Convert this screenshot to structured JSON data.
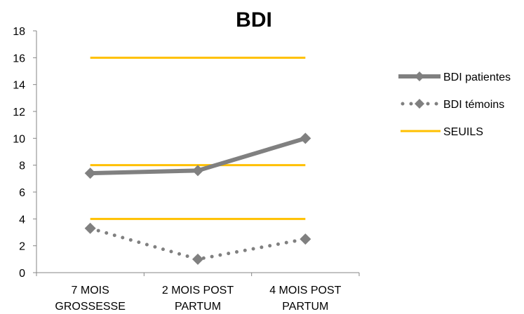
{
  "chart_data": {
    "type": "line",
    "title": "BDI",
    "categories": [
      [
        "7 MOIS",
        "GROSSESSE"
      ],
      [
        "2 MOIS POST",
        "PARTUM"
      ],
      [
        "4 MOIS POST",
        "PARTUM"
      ]
    ],
    "ylim": [
      0,
      18
    ],
    "yticks": [
      0,
      2,
      4,
      6,
      8,
      10,
      12,
      14,
      16,
      18
    ],
    "grid": false,
    "legend_position": "right",
    "series": [
      {
        "name": "BDI patientes",
        "values": [
          7.4,
          7.6,
          10.0
        ],
        "color": "#808080",
        "style": "solid",
        "marker": "diamond"
      },
      {
        "name": "BDI témoins",
        "values": [
          3.3,
          1.0,
          2.5
        ],
        "color": "#808080",
        "style": "dotted",
        "marker": "diamond"
      },
      {
        "name": "SEUILS",
        "values": [
          16,
          8,
          4
        ],
        "color": "#FFC000",
        "style": "threshold",
        "marker": "none"
      }
    ]
  }
}
